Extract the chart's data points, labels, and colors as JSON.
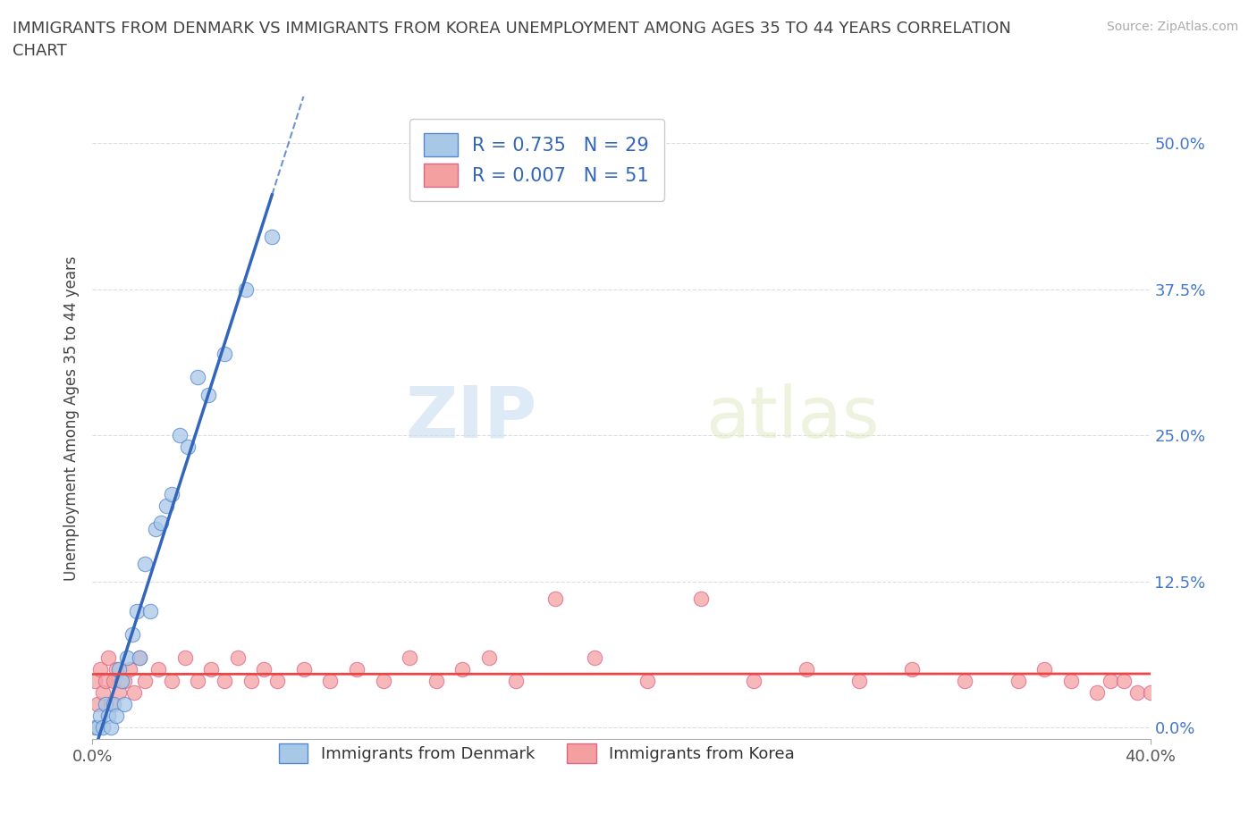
{
  "title": "IMMIGRANTS FROM DENMARK VS IMMIGRANTS FROM KOREA UNEMPLOYMENT AMONG AGES 35 TO 44 YEARS CORRELATION\nCHART",
  "source": "Source: ZipAtlas.com",
  "ylabel": "Unemployment Among Ages 35 to 44 years",
  "xlabel_denmark": "Immigrants from Denmark",
  "xlabel_korea": "Immigrants from Korea",
  "watermark_zip": "ZIP",
  "watermark_atlas": "atlas",
  "xlim": [
    0.0,
    0.4
  ],
  "ylim": [
    -0.01,
    0.54
  ],
  "xtick_left_label": "0.0%",
  "xtick_right_label": "40.0%",
  "xtick_left_val": 0.0,
  "xtick_right_val": 0.4,
  "ytick_labels": [
    "0.0%",
    "12.5%",
    "25.0%",
    "37.5%",
    "50.0%"
  ],
  "yticks": [
    0.0,
    0.125,
    0.25,
    0.375,
    0.5
  ],
  "R_denmark": 0.735,
  "N_denmark": 29,
  "R_korea": 0.007,
  "N_korea": 51,
  "color_denmark": "#a8c8e8",
  "color_korea": "#f4a0a0",
  "edge_color_denmark": "#5588cc",
  "edge_color_korea": "#dd6688",
  "line_color_denmark": "#3366bb",
  "line_color_korea": "#ee4444",
  "denmark_x": [
    0.001,
    0.002,
    0.003,
    0.004,
    0.005,
    0.006,
    0.007,
    0.008,
    0.009,
    0.01,
    0.011,
    0.012,
    0.013,
    0.015,
    0.017,
    0.018,
    0.02,
    0.022,
    0.024,
    0.026,
    0.028,
    0.03,
    0.033,
    0.036,
    0.04,
    0.044,
    0.05,
    0.058,
    0.068
  ],
  "denmark_y": [
    0.0,
    0.0,
    0.01,
    0.0,
    0.02,
    0.01,
    0.0,
    0.02,
    0.01,
    0.05,
    0.04,
    0.02,
    0.06,
    0.08,
    0.1,
    0.06,
    0.14,
    0.1,
    0.17,
    0.175,
    0.19,
    0.2,
    0.25,
    0.24,
    0.3,
    0.285,
    0.32,
    0.375,
    0.42
  ],
  "korea_x": [
    0.001,
    0.002,
    0.003,
    0.004,
    0.005,
    0.006,
    0.007,
    0.008,
    0.009,
    0.01,
    0.012,
    0.014,
    0.016,
    0.018,
    0.02,
    0.025,
    0.03,
    0.035,
    0.04,
    0.045,
    0.05,
    0.055,
    0.06,
    0.065,
    0.07,
    0.08,
    0.09,
    0.1,
    0.11,
    0.12,
    0.13,
    0.14,
    0.15,
    0.16,
    0.175,
    0.19,
    0.21,
    0.23,
    0.25,
    0.27,
    0.29,
    0.31,
    0.33,
    0.35,
    0.36,
    0.37,
    0.38,
    0.385,
    0.39,
    0.395,
    0.4
  ],
  "korea_y": [
    0.04,
    0.02,
    0.05,
    0.03,
    0.04,
    0.06,
    0.02,
    0.04,
    0.05,
    0.03,
    0.04,
    0.05,
    0.03,
    0.06,
    0.04,
    0.05,
    0.04,
    0.06,
    0.04,
    0.05,
    0.04,
    0.06,
    0.04,
    0.05,
    0.04,
    0.05,
    0.04,
    0.05,
    0.04,
    0.06,
    0.04,
    0.05,
    0.06,
    0.04,
    0.11,
    0.06,
    0.04,
    0.11,
    0.04,
    0.05,
    0.04,
    0.05,
    0.04,
    0.04,
    0.05,
    0.04,
    0.03,
    0.04,
    0.04,
    0.03,
    0.03
  ],
  "background_color": "#ffffff",
  "grid_color": "#dddddd",
  "ytick_color": "#4477cc"
}
